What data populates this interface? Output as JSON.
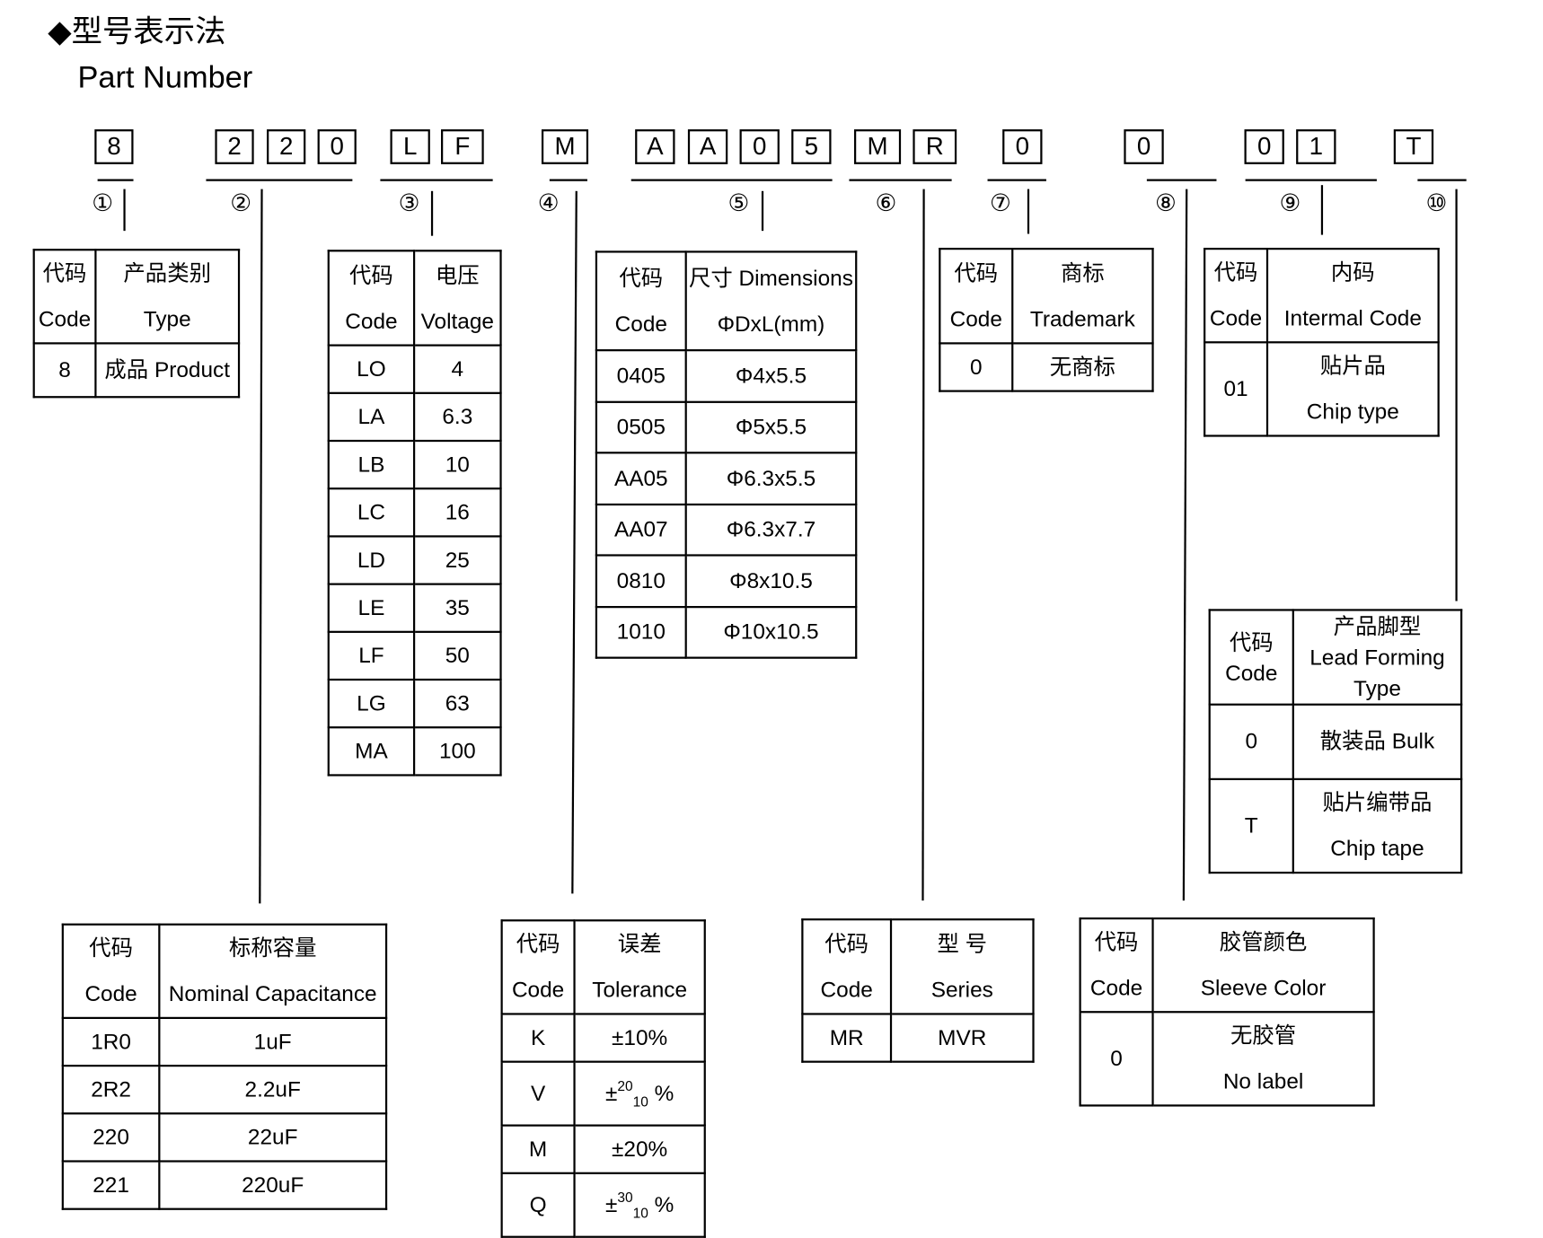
{
  "header": {
    "title_cn": "◆型号表示法",
    "title_en": "Part Number"
  },
  "code_chars": [
    "8",
    "2",
    "2",
    "0",
    "L",
    "F",
    "M",
    "A",
    "A",
    "0",
    "5",
    "M",
    "R",
    "0",
    "0",
    "0",
    "1",
    "T"
  ],
  "position_markers": [
    "①",
    "②",
    "③",
    "④",
    "⑤",
    "⑥",
    "⑦",
    "⑧",
    "⑨",
    "⑩"
  ],
  "tables": {
    "type": {
      "header": [
        [
          "代码\nCode",
          "产品类别\nType"
        ]
      ],
      "rows": [
        [
          "8",
          "成品 Product"
        ]
      ]
    },
    "voltage": {
      "header": [
        [
          "代码\nCode",
          "电压\nVoltage"
        ]
      ],
      "rows": [
        [
          "LO",
          "4"
        ],
        [
          "LA",
          "6.3"
        ],
        [
          "LB",
          "10"
        ],
        [
          "LC",
          "16"
        ],
        [
          "LD",
          "25"
        ],
        [
          "LE",
          "35"
        ],
        [
          "LF",
          "50"
        ],
        [
          "LG",
          "63"
        ],
        [
          "MA",
          "100"
        ]
      ]
    },
    "dimensions": {
      "header": [
        [
          "代码\nCode",
          "尺寸 Dimensions\nΦDxL(mm)"
        ]
      ],
      "rows": [
        [
          "0405",
          "Φ4x5.5"
        ],
        [
          "0505",
          "Φ5x5.5"
        ],
        [
          "AA05",
          "Φ6.3x5.5"
        ],
        [
          "AA07",
          "Φ6.3x7.7"
        ],
        [
          "0810",
          "Φ8x10.5"
        ],
        [
          "1010",
          "Φ10x10.5"
        ]
      ]
    },
    "trademark": {
      "header": [
        [
          "代码\nCode",
          "商标\nTrademark"
        ]
      ],
      "rows": [
        [
          "0",
          "无商标"
        ]
      ]
    },
    "internal": {
      "header": [
        [
          "代码\nCode",
          "内码\nIntermal Code"
        ]
      ],
      "rows": [
        [
          "01",
          "贴片品\nChip type"
        ]
      ]
    },
    "lead": {
      "header": [
        [
          "代码\nCode",
          "产品脚型\nLead Forming\nType"
        ]
      ],
      "rows": [
        [
          "0",
          "散装品 Bulk"
        ],
        [
          "T",
          "贴片编带品\nChip tape"
        ]
      ]
    },
    "capacitance": {
      "header": [
        [
          "代码\nCode",
          "标称容量\nNominal Capacitance"
        ]
      ],
      "rows": [
        [
          "1R0",
          "1uF"
        ],
        [
          "2R2",
          "2.2uF"
        ],
        [
          "220",
          "22uF"
        ],
        [
          "221",
          "220uF"
        ]
      ]
    },
    "tolerance": {
      "header": [
        [
          "代码\nCode",
          "误差\nTolerance"
        ]
      ],
      "rows": [
        [
          "K",
          "±10%"
        ],
        [
          "V",
          {
            "prefix": "±",
            "sup": "20",
            "sub": "10",
            "suffix": "%"
          }
        ],
        [
          "M",
          "±20%"
        ],
        [
          "Q",
          {
            "prefix": "±",
            "sup": "30",
            "sub": "10",
            "suffix": "%"
          }
        ]
      ]
    },
    "series": {
      "header": [
        [
          "代码\nCode",
          "型  号\nSeries"
        ]
      ],
      "rows": [
        [
          "MR",
          "MVR"
        ]
      ]
    },
    "sleeve": {
      "header": [
        [
          "代码\nCode",
          "胶管颜色\nSleeve Color"
        ]
      ],
      "rows": [
        [
          "0",
          "无胶管\nNo label"
        ]
      ]
    }
  }
}
